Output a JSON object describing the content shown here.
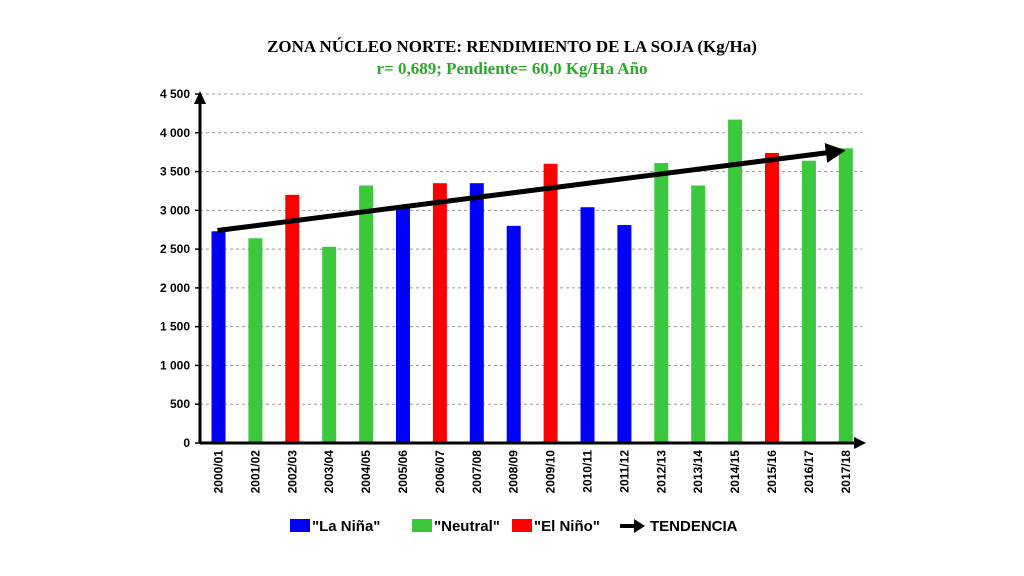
{
  "chart_data": {
    "type": "bar",
    "title": "ZONA NÚCLEO NORTE: RENDIMIENTO  DE LA SOJA (Kg/Ha)",
    "subtitle": "r= 0,689;  Pendiente=  60,0 Kg/Ha Año",
    "categories": [
      "2000/01",
      "2001/02",
      "2002/03",
      "2003/04",
      "2004/05",
      "2005/06",
      "2006/07",
      "2007/08",
      "2008/09",
      "2009/10",
      "2010/11",
      "2011/12",
      "2012/13",
      "2013/14",
      "2014/15",
      "2015/16",
      "2016/17",
      "2017/18"
    ],
    "values": [
      2730,
      2640,
      3200,
      2530,
      3320,
      3040,
      3350,
      3350,
      2800,
      3600,
      3040,
      2810,
      3610,
      3320,
      4170,
      3740,
      3640,
      3800
    ],
    "phases": [
      "La Niña",
      "Neutral",
      "El Niño",
      "Neutral",
      "Neutral",
      "La Niña",
      "El Niño",
      "La Niña",
      "La Niña",
      "El Niño",
      "La Niña",
      "La Niña",
      "Neutral",
      "Neutral",
      "Neutral",
      "El Niño",
      "Neutral",
      "Neutral"
    ],
    "ylim": [
      0,
      4500
    ],
    "yticks": [
      0,
      500,
      1000,
      1500,
      2000,
      2500,
      3000,
      3500,
      4000,
      4500
    ],
    "ytick_labels": [
      "0",
      "500",
      "1 000",
      "1 500",
      "2 000",
      "2 500",
      "3 000",
      "3 500",
      "4 000",
      "4 500"
    ],
    "grid": true,
    "trend": {
      "label": "TENDENCIA",
      "start": 2740,
      "end": 3760
    },
    "legend": {
      "position": "bottom",
      "entries": [
        {
          "label": "\"La Niña\"",
          "color": "#0000ff"
        },
        {
          "label": "\"Neutral\"",
          "color": "#3cc83c"
        },
        {
          "label": "\"El Niño\"",
          "color": "#ff0000"
        },
        {
          "label": "TENDENCIA",
          "color": "#000000"
        }
      ]
    },
    "colors": {
      "La Niña": "#0000ff",
      "Neutral": "#3cc83c",
      "El Niño": "#ff0000",
      "subtitle": "#2aa82a"
    }
  }
}
